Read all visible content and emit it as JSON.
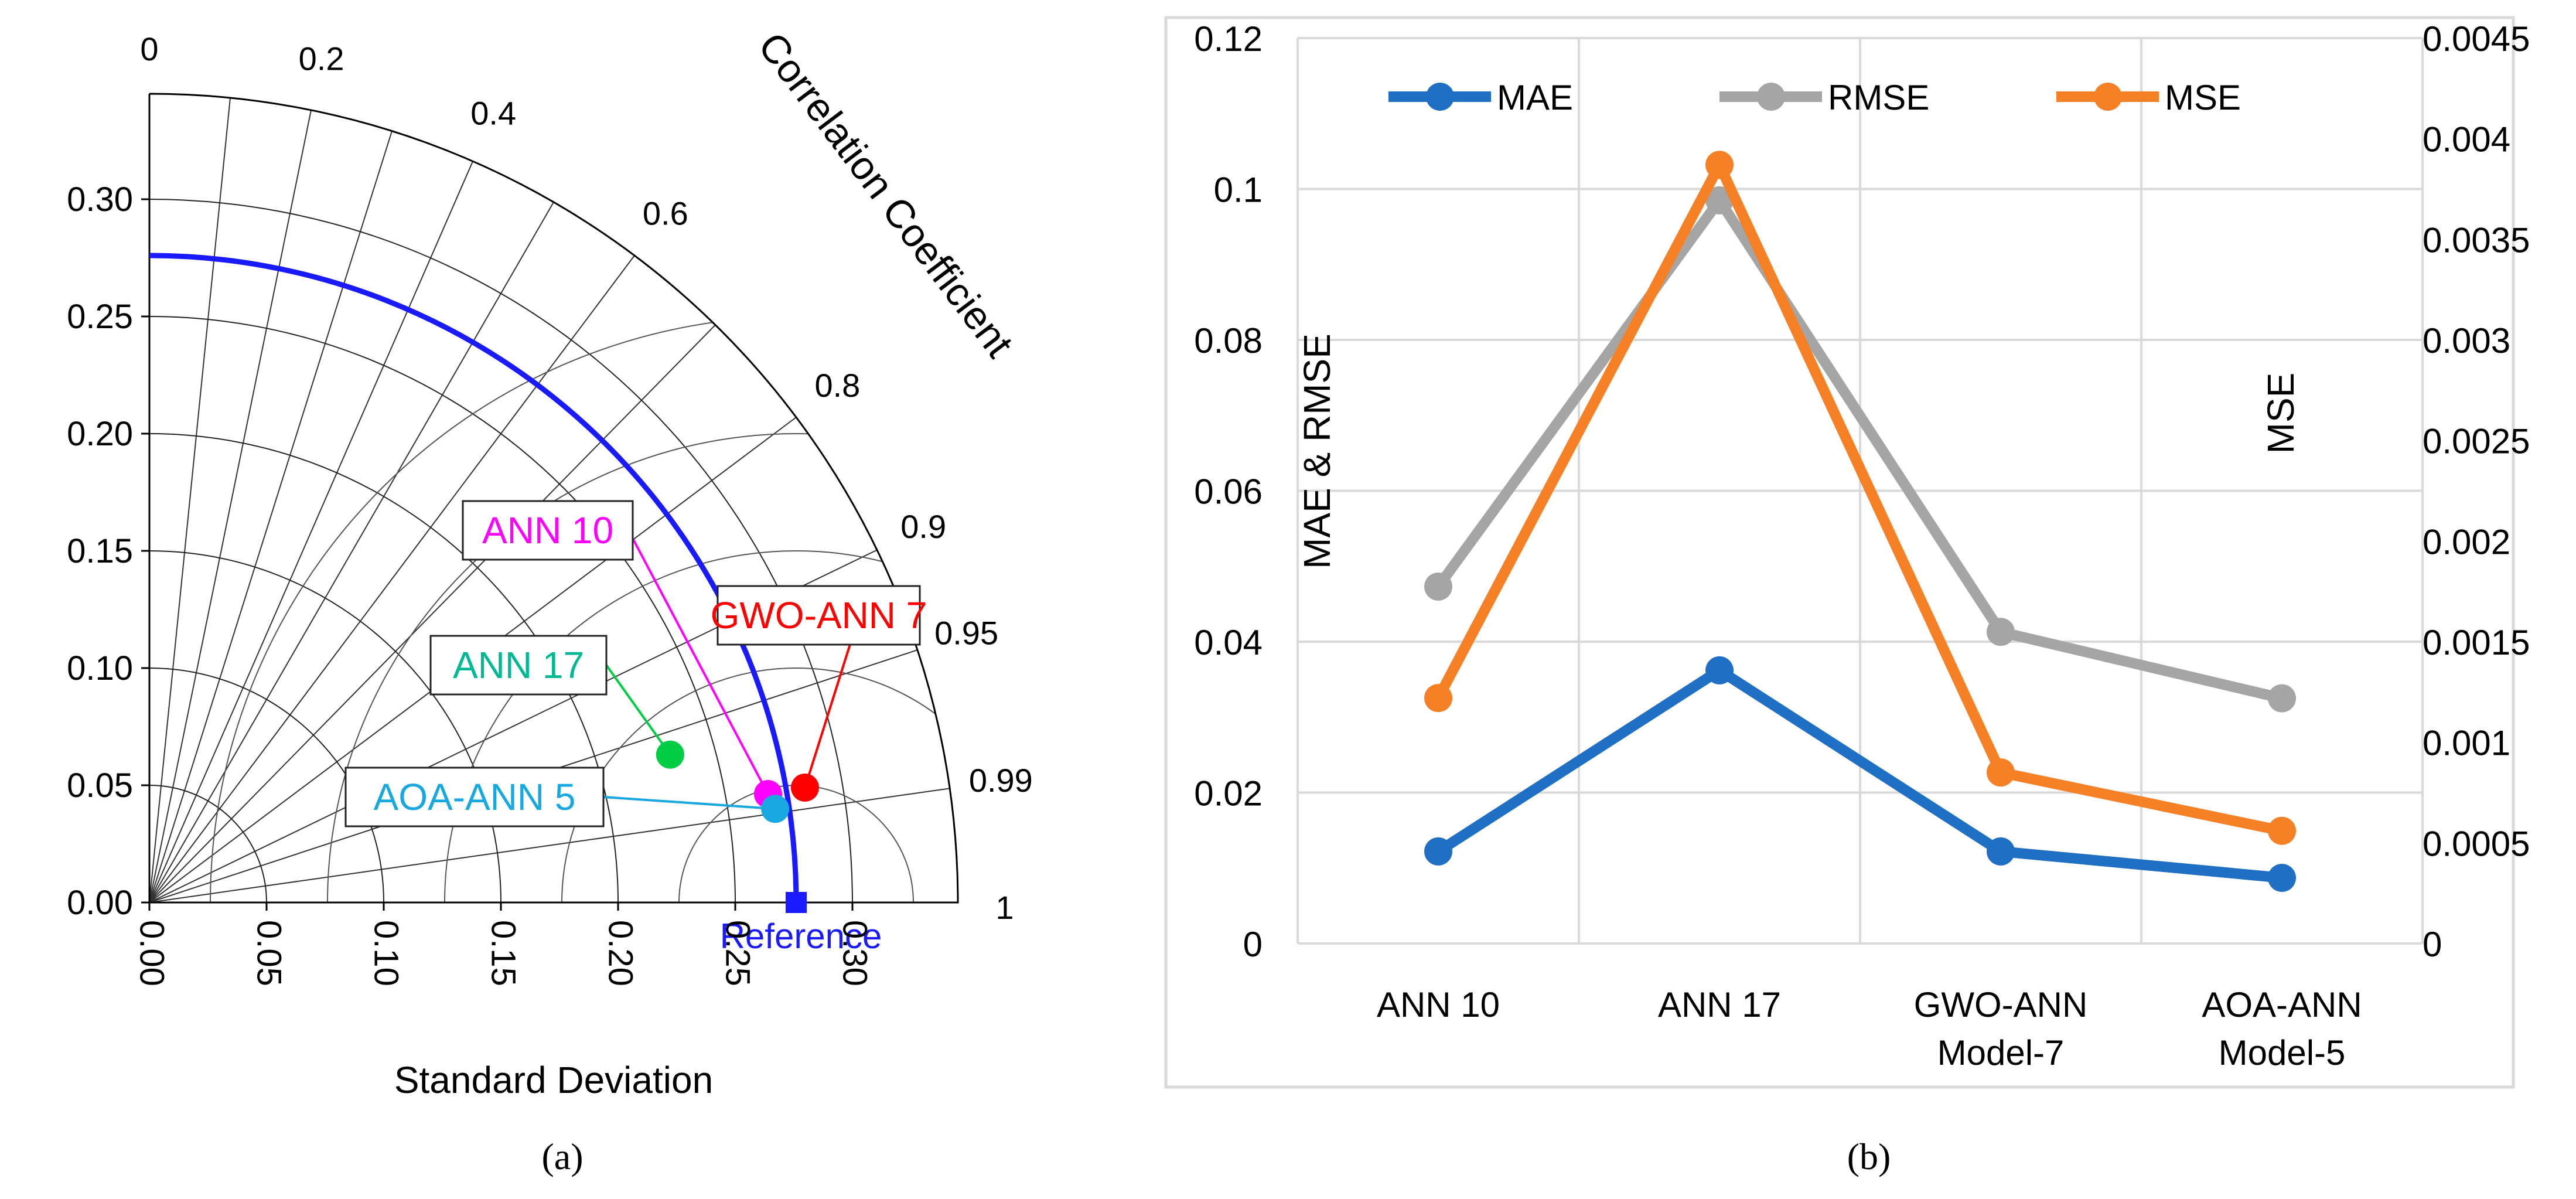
{
  "chart_data": [
    {
      "type": "taylor-diagram",
      "panel_label": "(a)",
      "xlabel": "Standard Deviation",
      "arc_label": "Correlation Coefficient",
      "std_ticks": [
        "0.00",
        "0.05",
        "0.10",
        "0.15",
        "0.20",
        "0.25",
        "0.30"
      ],
      "std_tick_values": [
        0,
        0.05,
        0.1,
        0.15,
        0.2,
        0.25,
        0.3
      ],
      "y_ticks": [
        "0.00",
        "0.05",
        "0.10",
        "0.15",
        "0.20",
        "0.25",
        "0.30"
      ],
      "y_tick_values": [
        0,
        0.05,
        0.1,
        0.15,
        0.2,
        0.25,
        0.3
      ],
      "max_std": 0.345,
      "corr_ticks": [
        "0",
        "0.2",
        "0.4",
        "0.6",
        "0.8",
        "0.9",
        "0.95",
        "0.99",
        "1"
      ],
      "corr_tick_values": [
        0,
        0.2,
        0.4,
        0.6,
        0.8,
        0.9,
        0.95,
        0.99,
        1
      ],
      "corr_spokes": [
        0.1,
        0.2,
        0.3,
        0.4,
        0.5,
        0.6,
        0.7,
        0.8,
        0.9,
        0.95,
        0.99
      ],
      "std_arcs": [
        0.05,
        0.1,
        0.15,
        0.2,
        0.25,
        0.3
      ],
      "rms_arcs": [
        0.05,
        0.1,
        0.15,
        0.2,
        0.25
      ],
      "reference": {
        "label": "Reference",
        "std": 0.276,
        "color": "#1a1aff"
      },
      "models": [
        {
          "label": "ANN 10",
          "std": 0.268,
          "corr": 0.985,
          "color": "#ff00ff"
        },
        {
          "label": "ANN 17",
          "std": 0.231,
          "corr": 0.962,
          "color": "#00cc44",
          "label_color": "#00b894"
        },
        {
          "label": "GWO-ANN 7",
          "std": 0.284,
          "corr": 0.985,
          "color": "#ff0000"
        },
        {
          "label": "AOA-ANN 5",
          "std": 0.27,
          "corr": 0.989,
          "color": "#19a7e0"
        }
      ]
    },
    {
      "type": "line",
      "panel_label": "(b)",
      "categories": [
        "ANN 10",
        "ANN 17",
        "GWO-ANN\nModel-7",
        "AOA-ANN\nModel-5"
      ],
      "category_lines": [
        [
          "ANN 10"
        ],
        [
          "ANN 17"
        ],
        [
          "GWO-ANN",
          "Model-7"
        ],
        [
          "AOA-ANN",
          "Model-5"
        ]
      ],
      "ylabel": "MAE & RMSE",
      "y2label": "MSE",
      "ylim": [
        0,
        0.12
      ],
      "y2lim": [
        0,
        0.0045
      ],
      "yticks": [
        "0",
        "0.02",
        "0.04",
        "0.06",
        "0.08",
        "0.1",
        "0.12"
      ],
      "ytick_values": [
        0,
        0.02,
        0.04,
        0.06,
        0.08,
        0.1,
        0.12
      ],
      "y2ticks": [
        "0",
        "0.0005",
        "0.001",
        "0.0015",
        "0.002",
        "0.0025",
        "0.003",
        "0.0035",
        "0.004",
        "0.0045"
      ],
      "y2tick_values": [
        0,
        0.0005,
        0.001,
        0.0015,
        0.002,
        0.0025,
        0.003,
        0.0035,
        0.004,
        0.0045
      ],
      "series": [
        {
          "name": "MAE",
          "axis": "left",
          "color": "#1f6fc5",
          "values": [
            0.0122,
            0.0362,
            0.0122,
            0.0087
          ]
        },
        {
          "name": "RMSE",
          "axis": "left",
          "color": "#a5a5a5",
          "values": [
            0.0473,
            0.0985,
            0.0413,
            0.0325
          ]
        },
        {
          "name": "MSE",
          "axis": "right",
          "color": "#f58025",
          "values": [
            0.00122,
            0.00387,
            0.00085,
            0.00056
          ]
        }
      ]
    }
  ]
}
